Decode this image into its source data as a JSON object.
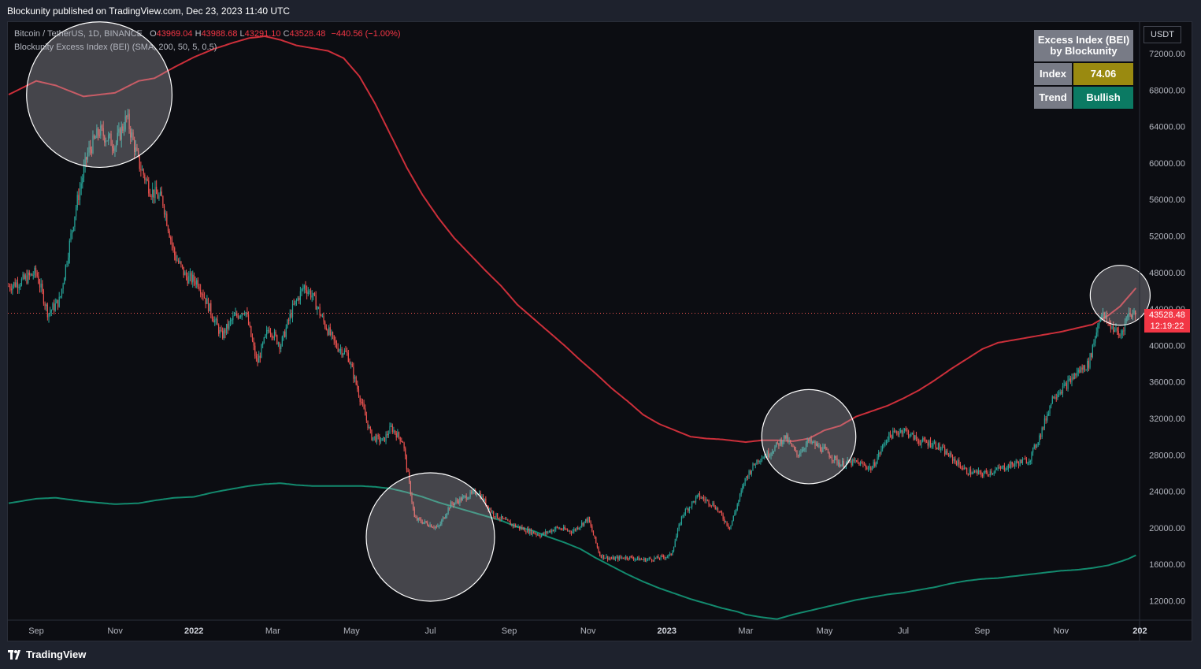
{
  "header": {
    "caption": "Blockunity published on TradingView.com, Dec 23, 2023 11:40 UTC"
  },
  "legend": {
    "symbol": "Bitcoin / TetherUS, 1D, BINANCE",
    "o_label": "O",
    "o_value": "43969.04",
    "h_label": "H",
    "h_value": "43988.68",
    "l_label": "L",
    "l_value": "43291.10",
    "c_label": "C",
    "c_value": "43528.48",
    "change": "−440.56 (−1.00%)",
    "indicator": "Blockunity Excess Index (BEI) (SMA, 200, 50, 5, 0.5)"
  },
  "info_table": {
    "title_line1": "Excess Index (BEI)",
    "title_line2": "by Blockunity",
    "index_label": "Index",
    "index_value": "74.06",
    "index_color": "#9a8a10",
    "trend_label": "Trend",
    "trend_value": "Bullish",
    "trend_color": "#0b7a63"
  },
  "price_axis": {
    "currency": "USDT",
    "last_price": "43528.48",
    "countdown": "12:19:22"
  },
  "footer": {
    "brand": "TradingView"
  },
  "colors": {
    "background": "#0c0d12",
    "upper_band": "#cc2f3a",
    "lower_band": "#138a6e",
    "candle_up": "#26a69a",
    "candle_down": "#ef5350"
  },
  "chart_data": {
    "type": "line",
    "title": "Bitcoin / TetherUS, 1D, BINANCE",
    "ylabel": "USDT",
    "ylim": [
      10000,
      74000
    ],
    "y_ticks": [
      "72000.00",
      "68000.00",
      "64000.00",
      "60000.00",
      "56000.00",
      "52000.00",
      "48000.00",
      "44000.00",
      "40000.00",
      "36000.00",
      "32000.00",
      "28000.00",
      "24000.00",
      "20000.00",
      "16000.00",
      "12000.00"
    ],
    "x_ticks": [
      {
        "label": "Sep",
        "t": 0.0,
        "bold": false
      },
      {
        "label": "Nov",
        "t": 2.0,
        "bold": false
      },
      {
        "label": "2022",
        "t": 4.0,
        "bold": true
      },
      {
        "label": "Mar",
        "t": 6.0,
        "bold": false
      },
      {
        "label": "May",
        "t": 8.0,
        "bold": false
      },
      {
        "label": "Jul",
        "t": 10.0,
        "bold": false
      },
      {
        "label": "Sep",
        "t": 12.0,
        "bold": false
      },
      {
        "label": "Nov",
        "t": 14.0,
        "bold": false
      },
      {
        "label": "2023",
        "t": 16.0,
        "bold": true
      },
      {
        "label": "Mar",
        "t": 18.0,
        "bold": false
      },
      {
        "label": "May",
        "t": 20.0,
        "bold": false
      },
      {
        "label": "Jul",
        "t": 22.0,
        "bold": false
      },
      {
        "label": "Sep",
        "t": 24.0,
        "bold": false
      },
      {
        "label": "Nov",
        "t": 26.0,
        "bold": false
      },
      {
        "label": "202",
        "t": 28.0,
        "bold": true
      }
    ],
    "x_range": [
      -0.7,
      28.0
    ],
    "series": [
      {
        "name": "BTC close (approx.)",
        "t": [
          -0.7,
          -0.4,
          0.0,
          0.3,
          0.6,
          1.0,
          1.3,
          1.6,
          2.0,
          2.3,
          2.6,
          2.9,
          3.2,
          3.5,
          3.8,
          4.1,
          4.4,
          4.7,
          5.0,
          5.3,
          5.6,
          5.9,
          6.2,
          6.5,
          6.8,
          7.0,
          7.3,
          7.6,
          7.9,
          8.2,
          8.5,
          8.8,
          9.0,
          9.3,
          9.6,
          9.9,
          10.2,
          10.5,
          10.8,
          11.2,
          11.6,
          12.0,
          12.4,
          12.8,
          13.2,
          13.6,
          14.0,
          14.3,
          14.6,
          15.0,
          15.4,
          15.8,
          16.1,
          16.4,
          16.8,
          17.2,
          17.6,
          18.0,
          18.3,
          18.6,
          19.0,
          19.3,
          19.6,
          20.0,
          20.4,
          20.8,
          21.2,
          21.6,
          22.0,
          22.4,
          22.8,
          23.2,
          23.6,
          24.0,
          24.4,
          24.8,
          25.2,
          25.5,
          25.8,
          26.1,
          26.4,
          26.7,
          27.0,
          27.3,
          27.5,
          27.7,
          27.9
        ],
        "close": [
          46500,
          47000,
          48000,
          43500,
          45000,
          55000,
          61000,
          63500,
          62000,
          65000,
          60000,
          57000,
          56000,
          50000,
          47500,
          47000,
          44000,
          41000,
          43000,
          44000,
          38000,
          42000,
          40000,
          44000,
          46500,
          45500,
          42500,
          40000,
          39000,
          34500,
          30000,
          29500,
          31000,
          29500,
          21000,
          20500,
          20000,
          22500,
          23200,
          24000,
          21500,
          20500,
          19800,
          19200,
          20000,
          19600,
          21000,
          17000,
          16600,
          16800,
          16500,
          16700,
          17000,
          21500,
          23500,
          22500,
          20000,
          25500,
          27500,
          28200,
          30000,
          28000,
          29500,
          28500,
          27000,
          27200,
          26500,
          30000,
          30800,
          29500,
          29200,
          27800,
          26200,
          25900,
          26400,
          27000,
          27500,
          30500,
          34500,
          35500,
          37000,
          38000,
          43500,
          42000,
          41000,
          43500,
          43528
        ]
      },
      {
        "name": "BEI upper band",
        "t": [
          -0.7,
          0.0,
          0.5,
          1.2,
          2.0,
          2.6,
          3.0,
          3.5,
          4.0,
          4.5,
          5.0,
          5.4,
          5.8,
          6.2,
          6.6,
          7.0,
          7.4,
          7.8,
          8.2,
          8.6,
          9.0,
          9.4,
          9.8,
          10.2,
          10.6,
          11.0,
          11.4,
          11.8,
          12.2,
          12.6,
          13.0,
          13.4,
          13.8,
          14.2,
          14.6,
          15.0,
          15.4,
          15.8,
          16.2,
          16.6,
          17.0,
          17.4,
          17.8,
          18.0,
          18.4,
          18.8,
          19.2,
          19.6,
          20.0,
          20.4,
          20.8,
          21.2,
          21.6,
          22.0,
          22.4,
          22.8,
          23.2,
          23.6,
          24.0,
          24.4,
          24.8,
          25.2,
          25.6,
          26.0,
          26.4,
          26.8,
          27.2,
          27.5,
          27.7,
          27.9
        ],
        "values": [
          67500,
          69000,
          68500,
          67300,
          67700,
          69000,
          69300,
          70500,
          71600,
          72500,
          73200,
          73700,
          73900,
          73500,
          72900,
          72600,
          72300,
          71500,
          69500,
          66500,
          63000,
          59500,
          56500,
          54000,
          51800,
          50000,
          48200,
          46500,
          44500,
          43000,
          41500,
          40000,
          38400,
          36900,
          35300,
          33900,
          32400,
          31400,
          30700,
          30000,
          29800,
          29700,
          29500,
          29400,
          29600,
          29600,
          29500,
          29800,
          30700,
          31200,
          32200,
          32800,
          33400,
          34200,
          35100,
          36200,
          37400,
          38500,
          39600,
          40300,
          40600,
          40900,
          41200,
          41500,
          41900,
          42300,
          43300,
          44300,
          45300,
          46300
        ]
      },
      {
        "name": "BEI lower band",
        "t": [
          -0.7,
          0.0,
          0.5,
          1.2,
          2.0,
          2.6,
          3.0,
          3.5,
          4.0,
          4.5,
          5.0,
          5.4,
          5.8,
          6.2,
          6.6,
          7.0,
          7.4,
          7.8,
          8.2,
          8.6,
          9.0,
          9.4,
          9.8,
          10.2,
          10.6,
          11.0,
          11.4,
          11.8,
          12.2,
          12.6,
          13.0,
          13.4,
          13.8,
          14.2,
          14.6,
          15.0,
          15.4,
          15.8,
          16.2,
          16.6,
          17.0,
          17.4,
          17.8,
          18.0,
          18.4,
          18.8,
          19.2,
          19.6,
          20.0,
          20.4,
          20.8,
          21.2,
          21.6,
          22.0,
          22.4,
          22.8,
          23.2,
          23.6,
          24.0,
          24.4,
          24.8,
          25.2,
          25.6,
          26.0,
          26.4,
          26.8,
          27.2,
          27.5,
          27.7,
          27.9
        ],
        "values": [
          22700,
          23200,
          23300,
          22900,
          22600,
          22700,
          23000,
          23300,
          23400,
          23900,
          24300,
          24600,
          24800,
          24900,
          24700,
          24600,
          24600,
          24600,
          24600,
          24500,
          24300,
          23900,
          23400,
          22800,
          22300,
          21800,
          21300,
          20800,
          20100,
          19700,
          19000,
          18400,
          17700,
          16700,
          15800,
          14900,
          14100,
          13400,
          12800,
          12200,
          11700,
          11200,
          10800,
          10500,
          10200,
          10000,
          10500,
          10900,
          11300,
          11700,
          12100,
          12400,
          12700,
          12900,
          13200,
          13500,
          13900,
          14200,
          14400,
          14500,
          14700,
          14900,
          15100,
          15300,
          15400,
          15600,
          15900,
          16300,
          16600,
          17000
        ]
      }
    ],
    "last_price": 43528.48,
    "highlight_circles": [
      {
        "t": 1.6,
        "price": 67500,
        "r_days": 34
      },
      {
        "t": 10.0,
        "price": 19000,
        "r_days": 30
      },
      {
        "t": 19.6,
        "price": 30000,
        "r_days": 22
      },
      {
        "t": 27.5,
        "price": 45500,
        "r_days": 14
      }
    ]
  }
}
